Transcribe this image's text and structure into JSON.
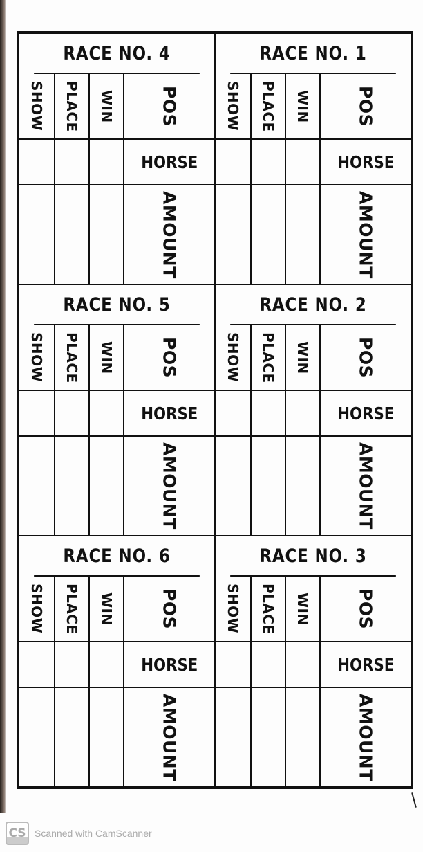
{
  "races": [
    {
      "title": "RACE NO. 4",
      "show": "SHOW",
      "place": "PLACE",
      "win": "WIN",
      "pos": "POS",
      "horse": "HORSE",
      "amount": "AMOUNT"
    },
    {
      "title": "RACE NO. 1",
      "show": "SHOW",
      "place": "PLACE",
      "win": "WIN",
      "pos": "POS",
      "horse": "HORSE",
      "amount": "AMOUNT"
    },
    {
      "title": "RACE NO. 5",
      "show": "SHOW",
      "place": "PLACE",
      "win": "WIN",
      "pos": "POS",
      "horse": "HORSE",
      "amount": "AMOUNT"
    },
    {
      "title": "RACE NO. 2",
      "show": "SHOW",
      "place": "PLACE",
      "win": "WIN",
      "pos": "POS",
      "horse": "HORSE",
      "amount": "AMOUNT"
    },
    {
      "title": "RACE NO. 6",
      "show": "SHOW",
      "place": "PLACE",
      "win": "WIN",
      "pos": "POS",
      "horse": "HORSE",
      "amount": "AMOUNT"
    },
    {
      "title": "RACE NO. 3",
      "show": "SHOW",
      "place": "PLACE",
      "win": "WIN",
      "pos": "POS",
      "horse": "HORSE",
      "amount": "AMOUNT"
    }
  ],
  "footer": {
    "logo": "CS",
    "text": "Scanned with CamScanner"
  }
}
